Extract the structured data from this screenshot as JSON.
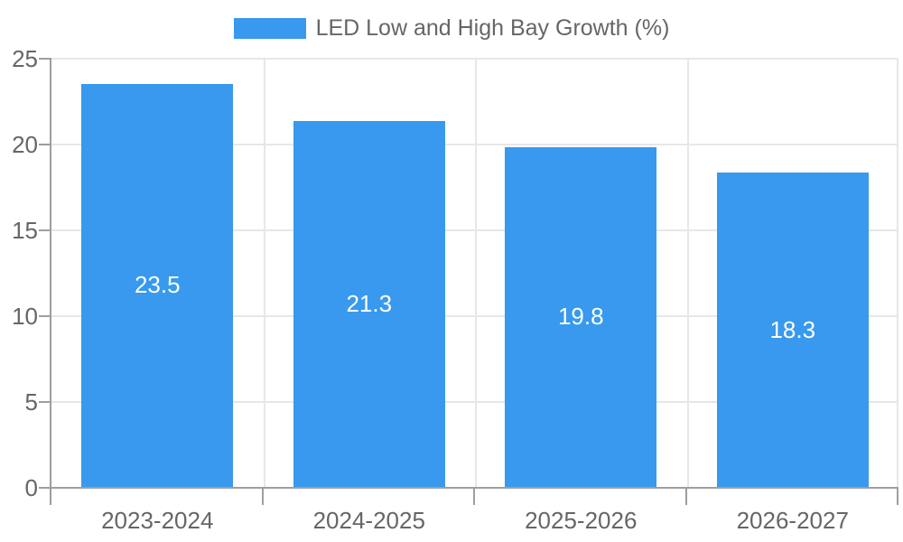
{
  "legend": {
    "label": "LED Low and High Bay Growth (%)"
  },
  "colors": {
    "bar": "#3899ee",
    "grid": "#e7e7e7",
    "axis": "#9e9e9e",
    "tick_text": "#666666",
    "value_text": "#ffffff",
    "background": "#ffffff"
  },
  "chart_data": {
    "type": "bar",
    "title": "LED Low and High Bay Growth (%)",
    "categories": [
      "2023-2024",
      "2024-2025",
      "2025-2026",
      "2026-2027"
    ],
    "values": [
      23.5,
      21.3,
      19.8,
      18.3
    ],
    "value_labels": [
      "23.5",
      "21.3",
      "19.8",
      "18.3"
    ],
    "series": [
      {
        "name": "LED Low and High Bay Growth (%)",
        "values": [
          23.5,
          21.3,
          19.8,
          18.3
        ]
      }
    ],
    "xlabel": "",
    "ylabel": "",
    "ylim": [
      0,
      25
    ],
    "y_ticks": [
      0,
      5,
      10,
      15,
      20,
      25
    ],
    "grid": true,
    "legend_position": "top",
    "value_labels_position": "inside-center"
  }
}
